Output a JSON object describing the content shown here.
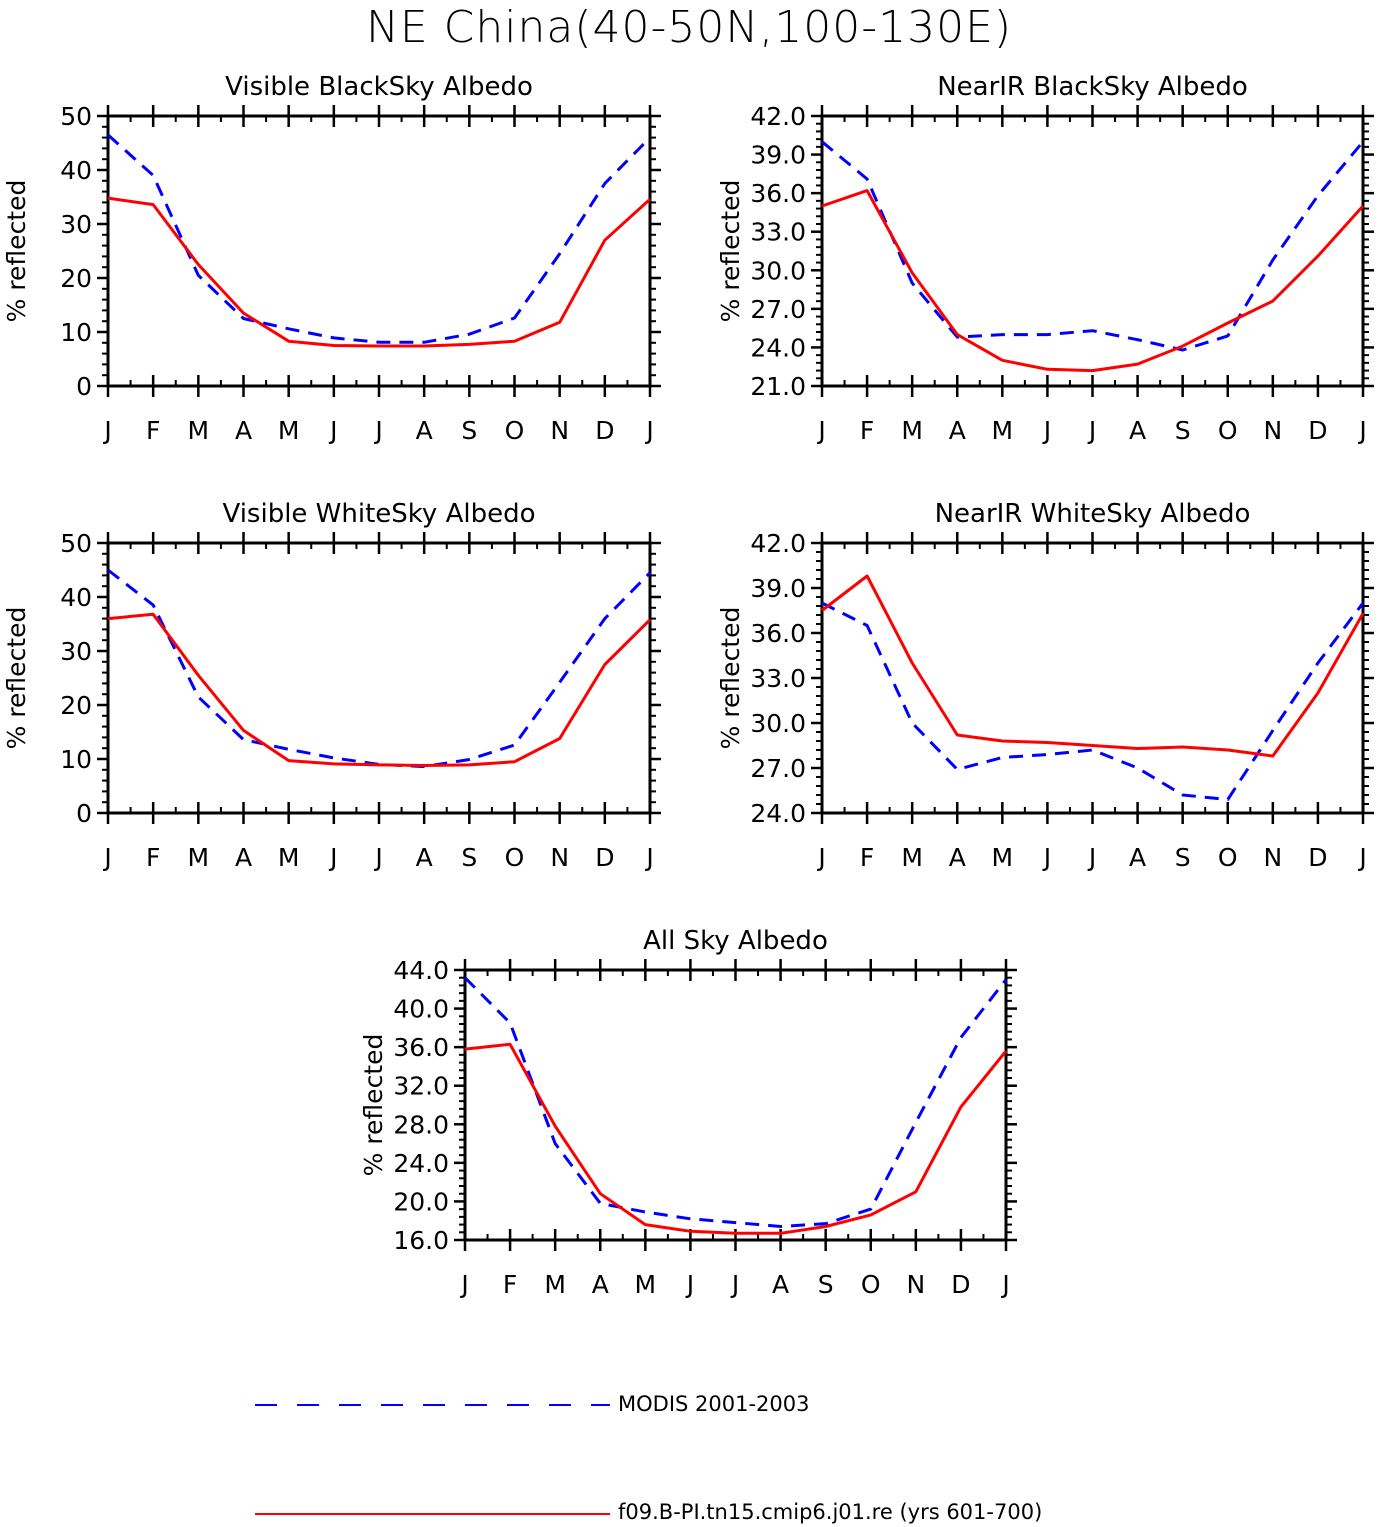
{
  "figure_title": "NE China(40-50N,100-130E)",
  "legend": [
    {
      "name": "MODIS 2001-2003",
      "color": "#0000ff",
      "style": "dashed"
    },
    {
      "name": "f09.B-PI.tn15.cmip6.j01.re (yrs 601-700)",
      "color": "#ff0000",
      "style": "solid"
    }
  ],
  "chart_data": [
    {
      "type": "line",
      "title": "Visible BlackSky Albedo",
      "ylabel": "% reflected",
      "xlabel": "",
      "categories": [
        "J",
        "F",
        "M",
        "A",
        "M",
        "J",
        "J",
        "A",
        "S",
        "O",
        "N",
        "D",
        "J"
      ],
      "ylim": [
        0,
        50
      ],
      "yticks": [
        "0",
        "10",
        "20",
        "30",
        "40",
        "50"
      ],
      "series": [
        {
          "name": "MODIS 2001-2003",
          "color": "#0000ff",
          "dash": true,
          "values": [
            46.5,
            39.0,
            20.5,
            12.5,
            10.6,
            8.9,
            8.1,
            8.1,
            9.6,
            12.6,
            24.5,
            37.5,
            46.0
          ]
        },
        {
          "name": "f09.B-PI.tn15.cmip6.j01.re (yrs 601-700)",
          "color": "#ff0000",
          "dash": false,
          "values": [
            34.8,
            33.6,
            22.5,
            13.5,
            8.3,
            7.5,
            7.4,
            7.4,
            7.7,
            8.3,
            11.8,
            27.0,
            34.6
          ]
        }
      ]
    },
    {
      "type": "line",
      "title": "NearIR BlackSky Albedo",
      "ylabel": "% reflected",
      "xlabel": "",
      "categories": [
        "J",
        "F",
        "M",
        "A",
        "M",
        "J",
        "J",
        "A",
        "S",
        "O",
        "N",
        "D",
        "J"
      ],
      "ylim": [
        21.0,
        42.0
      ],
      "yticks": [
        "21.0",
        "24.0",
        "27.0",
        "30.0",
        "33.0",
        "36.0",
        "39.0",
        "42.0"
      ],
      "series": [
        {
          "name": "MODIS 2001-2003",
          "color": "#0000ff",
          "dash": true,
          "values": [
            40.0,
            37.1,
            29.0,
            24.8,
            25.0,
            25.0,
            25.3,
            24.6,
            23.8,
            24.9,
            30.8,
            35.8,
            40.0
          ]
        },
        {
          "name": "f09.B-PI.tn15.cmip6.j01.re (yrs 601-700)",
          "color": "#ff0000",
          "dash": false,
          "values": [
            35.0,
            36.2,
            29.8,
            25.0,
            23.0,
            22.3,
            22.2,
            22.7,
            24.1,
            25.9,
            27.6,
            31.1,
            35.0
          ]
        }
      ]
    },
    {
      "type": "line",
      "title": "Visible WhiteSky Albedo",
      "ylabel": "% reflected",
      "xlabel": "",
      "categories": [
        "J",
        "F",
        "M",
        "A",
        "M",
        "J",
        "J",
        "A",
        "S",
        "O",
        "N",
        "D",
        "J"
      ],
      "ylim": [
        0,
        50
      ],
      "yticks": [
        "0",
        "10",
        "20",
        "30",
        "40",
        "50"
      ],
      "series": [
        {
          "name": "MODIS 2001-2003",
          "color": "#0000ff",
          "dash": true,
          "values": [
            45.0,
            38.5,
            21.5,
            13.6,
            11.8,
            10.2,
            9.0,
            8.6,
            9.9,
            12.6,
            24.2,
            36.0,
            44.5
          ]
        },
        {
          "name": "f09.B-PI.tn15.cmip6.j01.re (yrs 601-700)",
          "color": "#ff0000",
          "dash": false,
          "values": [
            36.0,
            36.8,
            25.5,
            15.3,
            9.7,
            9.1,
            8.9,
            8.8,
            8.9,
            9.5,
            13.8,
            27.5,
            35.8
          ]
        }
      ]
    },
    {
      "type": "line",
      "title": "NearIR WhiteSky Albedo",
      "ylabel": "% reflected",
      "xlabel": "",
      "categories": [
        "J",
        "F",
        "M",
        "A",
        "M",
        "J",
        "J",
        "A",
        "S",
        "O",
        "N",
        "D",
        "J"
      ],
      "ylim": [
        24.0,
        42.0
      ],
      "yticks": [
        "24.0",
        "27.0",
        "30.0",
        "33.0",
        "36.0",
        "39.0",
        "42.0"
      ],
      "series": [
        {
          "name": "MODIS 2001-2003",
          "color": "#0000ff",
          "dash": true,
          "values": [
            38.0,
            36.5,
            30.0,
            26.9,
            27.7,
            27.9,
            28.2,
            27.0,
            25.2,
            24.9,
            29.5,
            34.0,
            38.0
          ]
        },
        {
          "name": "f09.B-PI.tn15.cmip6.j01.re (yrs 601-700)",
          "color": "#ff0000",
          "dash": false,
          "values": [
            37.5,
            39.8,
            34.0,
            29.2,
            28.8,
            28.7,
            28.5,
            28.3,
            28.4,
            28.2,
            27.8,
            32.0,
            37.3
          ]
        }
      ]
    },
    {
      "type": "line",
      "title": "All Sky Albedo",
      "ylabel": "% reflected",
      "xlabel": "",
      "categories": [
        "J",
        "F",
        "M",
        "A",
        "M",
        "J",
        "J",
        "A",
        "S",
        "O",
        "N",
        "D",
        "J"
      ],
      "ylim": [
        16.0,
        44.0
      ],
      "yticks": [
        "16.0",
        "20.0",
        "24.0",
        "28.0",
        "32.0",
        "36.0",
        "40.0",
        "44.0"
      ],
      "series": [
        {
          "name": "MODIS 2001-2003",
          "color": "#0000ff",
          "dash": true,
          "values": [
            43.2,
            38.5,
            26.0,
            19.8,
            18.9,
            18.2,
            17.8,
            17.4,
            17.7,
            19.2,
            28.2,
            37.0,
            43.0
          ]
        },
        {
          "name": "f09.B-PI.tn15.cmip6.j01.re (yrs 601-700)",
          "color": "#ff0000",
          "dash": false,
          "values": [
            35.8,
            36.3,
            27.8,
            20.8,
            17.6,
            16.9,
            16.7,
            16.7,
            17.4,
            18.6,
            21.0,
            29.8,
            35.6
          ]
        }
      ]
    }
  ]
}
